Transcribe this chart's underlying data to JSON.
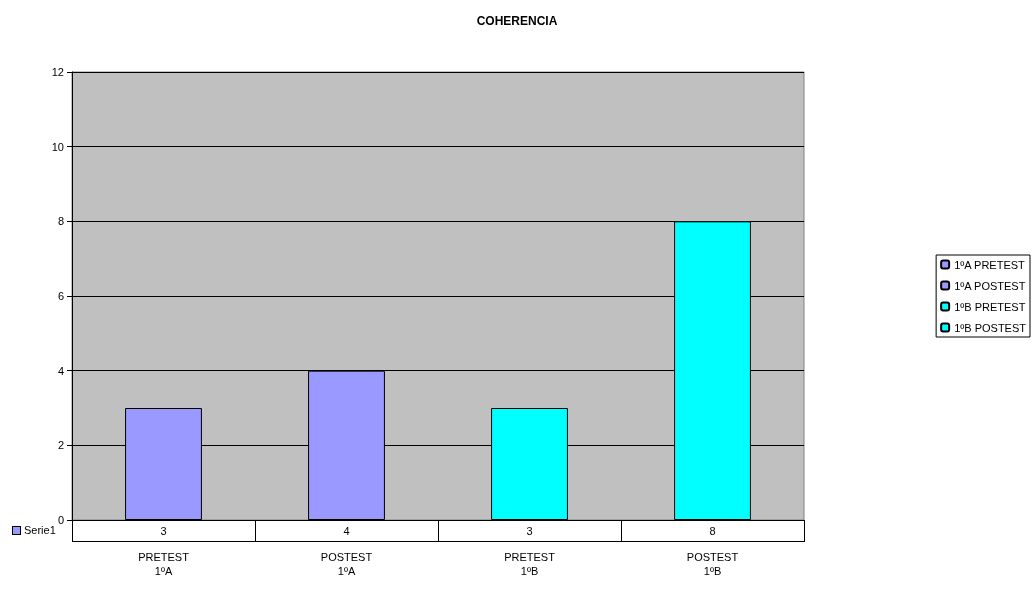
{
  "chart_data": {
    "type": "bar",
    "title": "COHERENCIA",
    "categories": [
      "PRETEST\n1ºA",
      "POSTEST\n1ºA",
      "PRETEST\n1ºB",
      "POSTEST\n1ºB"
    ],
    "series": [
      {
        "name": "1ºA PRETEST",
        "color": "#9999ff",
        "values": [
          3,
          null,
          null,
          null
        ]
      },
      {
        "name": "1ºA POSTEST",
        "color": "#9999ff",
        "values": [
          null,
          4,
          null,
          null
        ]
      },
      {
        "name": "1ºB PRETEST",
        "color": "#00ffff",
        "values": [
          null,
          null,
          3,
          null
        ]
      },
      {
        "name": "1ºB POSTEST",
        "color": "#00ffff",
        "values": [
          null,
          null,
          null,
          8
        ]
      }
    ],
    "stacked": true,
    "ylim": [
      0,
      12
    ],
    "yticks": [
      0,
      2,
      4,
      6,
      8,
      10,
      12
    ],
    "grid": "y",
    "legend": "right",
    "data_labels": true,
    "annotations": [
      "Serie1"
    ]
  }
}
